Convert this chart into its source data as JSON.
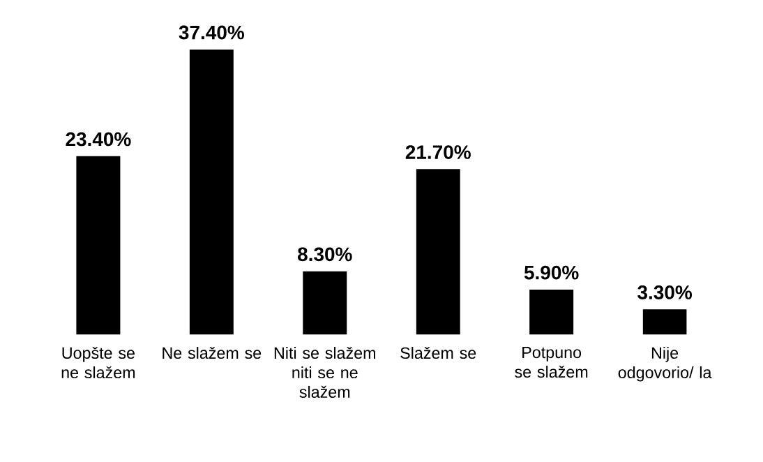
{
  "chart_data": {
    "type": "bar",
    "categories": [
      "Uopšte se ne slažem",
      "Ne slažem se",
      "Niti se slažem niti se ne slažem",
      "Slažem se",
      "Potpuno se slažem",
      "Nije odgovorio/ la"
    ],
    "values": [
      23.4,
      37.4,
      8.3,
      21.7,
      5.9,
      3.3
    ],
    "value_labels": [
      "23.40%",
      "37.40%",
      "8.30%",
      "21.70%",
      "5.90%",
      "3.30%"
    ],
    "color": "#000000"
  }
}
